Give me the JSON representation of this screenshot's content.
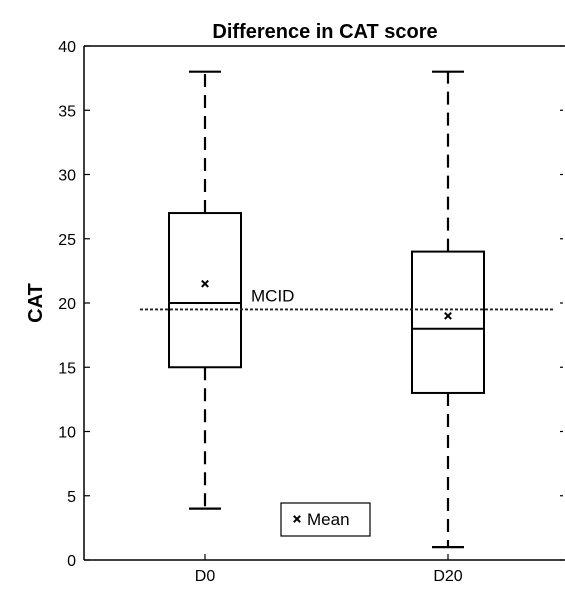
{
  "chart_data": {
    "type": "box",
    "title": "Difference in CAT score",
    "xlabel": "",
    "ylabel": "CAT",
    "ylim": [
      0,
      40
    ],
    "yticks": [
      0,
      5,
      10,
      15,
      20,
      25,
      30,
      35,
      40
    ],
    "categories": [
      "D0",
      "D20"
    ],
    "boxes": [
      {
        "category": "D0",
        "whisker_low": 4,
        "q1": 15,
        "median": 20,
        "q3": 27,
        "whisker_high": 38,
        "mean": 21.5
      },
      {
        "category": "D20",
        "whisker_low": 1,
        "q1": 13,
        "median": 18,
        "q3": 24,
        "whisker_high": 38,
        "mean": 19
      }
    ],
    "reference_line": {
      "label": "MCID",
      "value": 19.5,
      "style": "dotted"
    },
    "legend": {
      "label": "Mean",
      "marker": "x",
      "position": "bottom-center"
    },
    "grid": false
  }
}
